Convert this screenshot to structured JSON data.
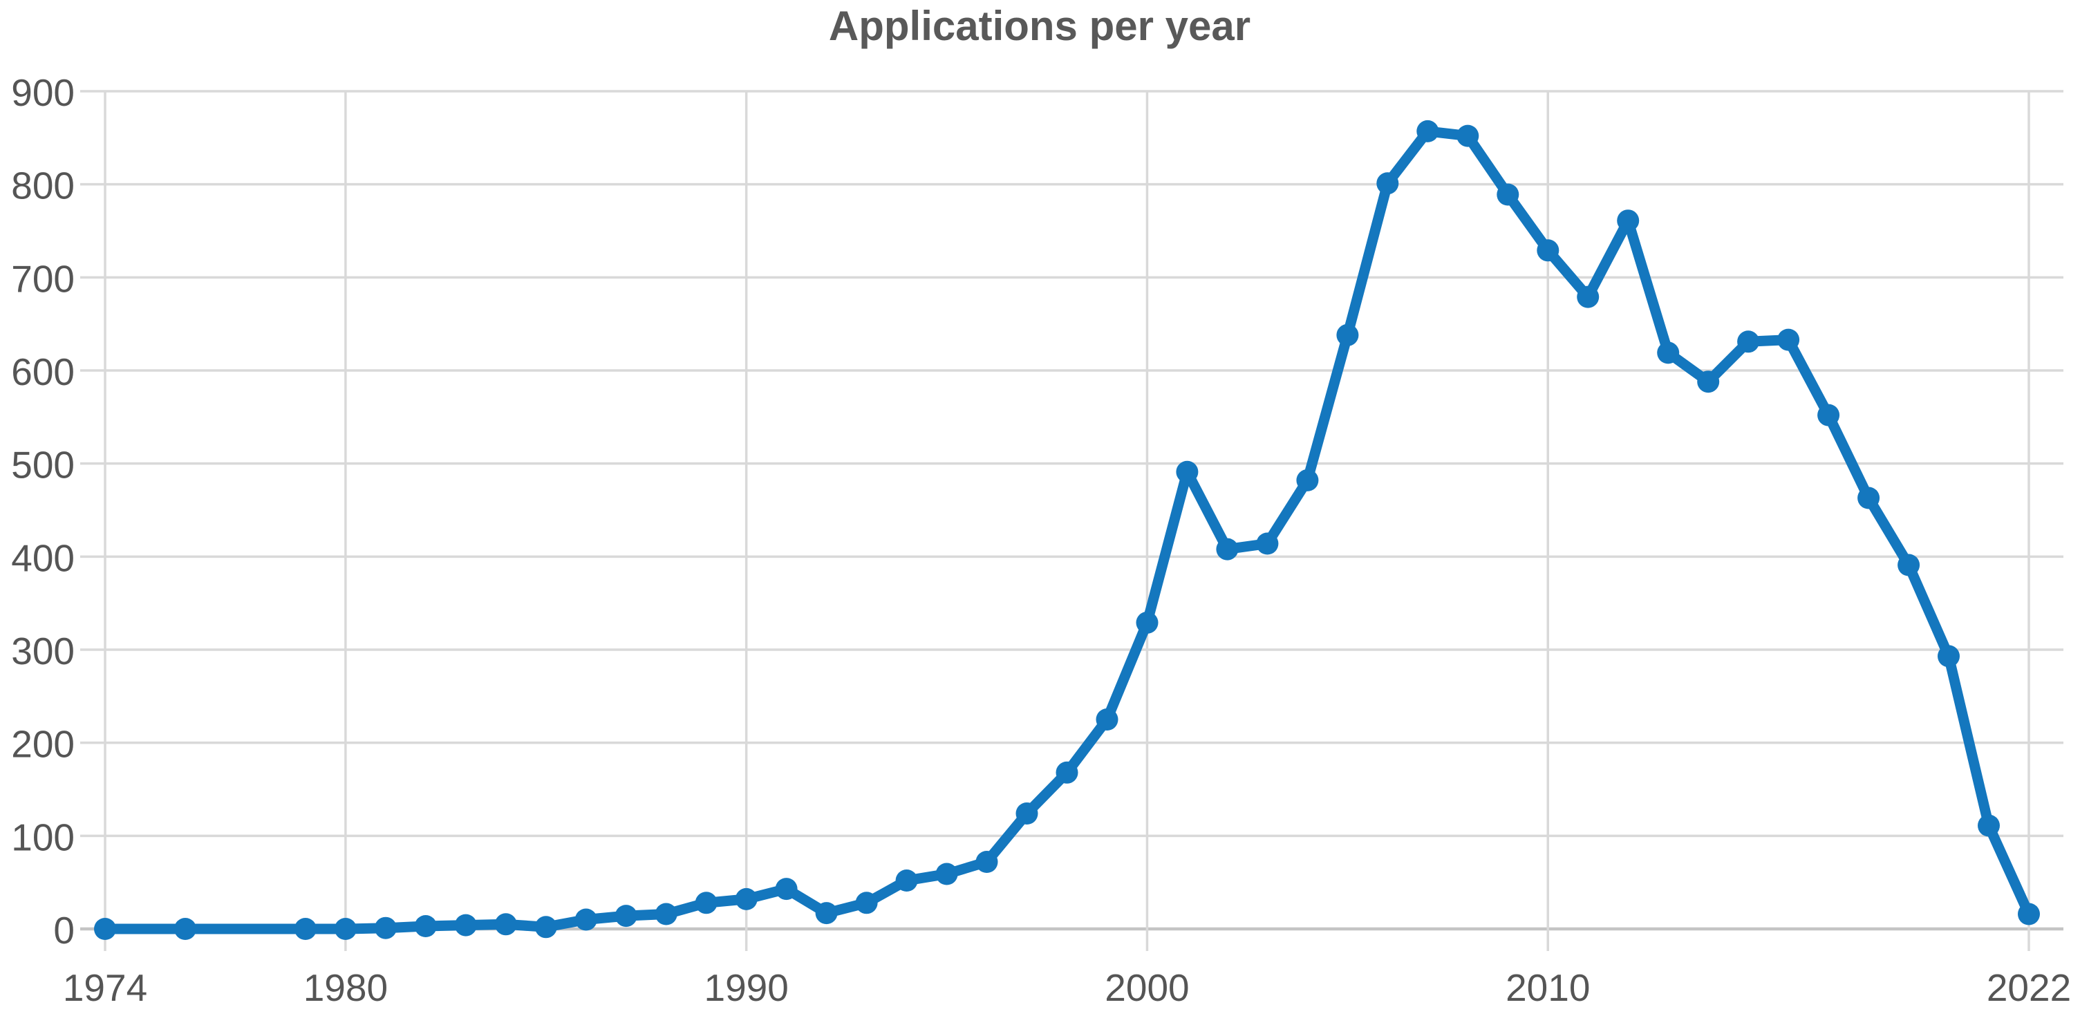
{
  "page": {
    "background": "#ffffff"
  },
  "colors": {
    "line": "#1477BE",
    "marker": "#1477BE",
    "grid": "#d9d9d9",
    "zero_line": "#c4c4c4",
    "axis_text": "#555555",
    "title_text": "#595959",
    "background": "#ffffff"
  },
  "chart_data": {
    "type": "line",
    "title": "Applications per year",
    "xlabel": "",
    "ylabel": "",
    "xlim": [
      1974,
      2022
    ],
    "ylim": [
      0,
      900
    ],
    "x_ticks": [
      1974,
      1980,
      1990,
      2000,
      2010,
      2022
    ],
    "y_ticks": [
      0,
      100,
      200,
      300,
      400,
      500,
      600,
      700,
      800,
      900
    ],
    "grid": true,
    "legend": false,
    "marker": "circle",
    "missing_marker_years": [
      1975,
      1977,
      1978
    ],
    "series": [
      {
        "name": "Applications per year",
        "points": [
          [
            1974,
            0
          ],
          [
            1976,
            0
          ],
          [
            1979,
            0
          ],
          [
            1980,
            0
          ],
          [
            1981,
            1
          ],
          [
            1982,
            3
          ],
          [
            1983,
            4
          ],
          [
            1984,
            5
          ],
          [
            1985,
            2
          ],
          [
            1986,
            10
          ],
          [
            1987,
            14
          ],
          [
            1988,
            16
          ],
          [
            1989,
            28
          ],
          [
            1990,
            32
          ],
          [
            1991,
            43
          ],
          [
            1992,
            17
          ],
          [
            1993,
            28
          ],
          [
            1994,
            52
          ],
          [
            1995,
            59
          ],
          [
            1996,
            72
          ],
          [
            1997,
            124
          ],
          [
            1998,
            168
          ],
          [
            1999,
            225
          ],
          [
            2000,
            329
          ],
          [
            2001,
            491
          ],
          [
            2002,
            408
          ],
          [
            2003,
            414
          ],
          [
            2004,
            482
          ],
          [
            2005,
            638
          ],
          [
            2006,
            801
          ],
          [
            2007,
            857
          ],
          [
            2008,
            852
          ],
          [
            2009,
            789
          ],
          [
            2010,
            729
          ],
          [
            2011,
            679
          ],
          [
            2012,
            761
          ],
          [
            2013,
            619
          ],
          [
            2014,
            588
          ],
          [
            2015,
            631
          ],
          [
            2016,
            633
          ],
          [
            2017,
            552
          ],
          [
            2018,
            463
          ],
          [
            2019,
            391
          ],
          [
            2020,
            293
          ],
          [
            2021,
            111
          ],
          [
            2022,
            16
          ]
        ]
      }
    ]
  }
}
